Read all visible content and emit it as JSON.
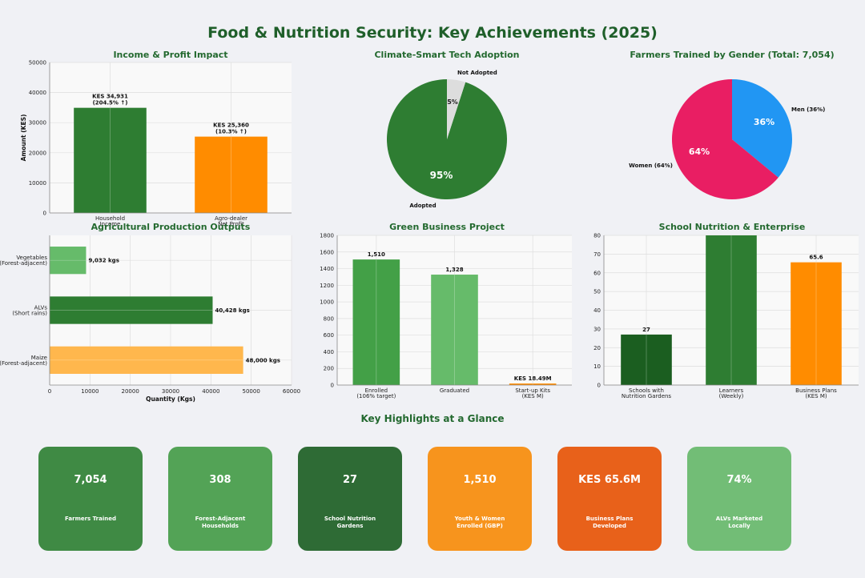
{
  "title": "Food & Nutrition Security: Key Achievements (2025)",
  "highlights_title": "Key Highlights at a Glance",
  "highlights": [
    {
      "value": "7,054",
      "label": "Farmers Trained",
      "color": "#3f8a44"
    },
    {
      "value": "308",
      "label": "Forest-Adjacent\nHouseholds",
      "color": "#53a356"
    },
    {
      "value": "27",
      "label": "School Nutrition\nGardens",
      "color": "#2e6b35"
    },
    {
      "value": "1,510",
      "label": "Youth & Women\nEnrolled (GBP)",
      "color": "#f7941d"
    },
    {
      "value": "KES 65.6M",
      "label": "Business Plans\nDeveloped",
      "color": "#e8611a"
    },
    {
      "value": "74%",
      "label": "ALVs Marketed\nLocally",
      "color": "#72bd76"
    }
  ],
  "chart_data": [
    {
      "type": "bar",
      "title": "Income & Profit Impact",
      "ylabel": "Amount (KES)",
      "categories": [
        "Household\nIncome",
        "Agro-dealer\nNet Profit"
      ],
      "values": [
        34931,
        25360
      ],
      "data_labels": [
        "KES 34,931\n(204.5% ↑)",
        "KES 25,360\n(10.3% ↑)"
      ],
      "colors": [
        "#2e7d32",
        "#ff8c00"
      ],
      "ylim": [
        0,
        50000
      ],
      "yticks": [
        0,
        10000,
        20000,
        30000,
        40000,
        50000
      ],
      "grid": true
    },
    {
      "type": "pie",
      "title": "Climate-Smart Tech Adoption",
      "labels": [
        "Adopted",
        "Not Adopted"
      ],
      "values": [
        95,
        5
      ],
      "pct_labels": [
        "95%",
        "5%"
      ],
      "colors": [
        "#2e7d32",
        "#dddddd"
      ]
    },
    {
      "type": "pie",
      "title": "Farmers Trained by Gender (Total: 7,054)",
      "labels": [
        "Women (64%)",
        "Men (36%)"
      ],
      "values": [
        64,
        36
      ],
      "pct_labels": [
        "64%",
        "36%"
      ],
      "colors": [
        "#e91e63",
        "#2196f3"
      ]
    },
    {
      "type": "bar",
      "orientation": "horizontal",
      "title": "Agricultural Production Outputs",
      "xlabel": "Quantity (Kgs)",
      "categories": [
        "Vegetables\n(Forest-adjacent)",
        "ALVs\n(Short rains)",
        "Maize\n(Forest-adjacent)"
      ],
      "values": [
        9032,
        40428,
        48000
      ],
      "data_labels": [
        "9,032 kgs",
        "40,428 kgs",
        "48,000 kgs"
      ],
      "colors": [
        "#66bb6a",
        "#2e7d32",
        "#ffb74d"
      ],
      "xlim": [
        0,
        60000
      ],
      "xticks": [
        0,
        10000,
        20000,
        30000,
        40000,
        50000,
        60000
      ],
      "grid": true
    },
    {
      "type": "bar",
      "title": "Green Business Project",
      "categories": [
        "Enrolled\n(106% target)",
        "Graduated",
        "Start-up Kits\n(KES M)"
      ],
      "values": [
        1510,
        1328,
        18.49
      ],
      "data_labels": [
        "1,510",
        "1,328",
        "KES 18.49M"
      ],
      "colors": [
        "#43a047",
        "#66bb6a",
        "#ff8c00"
      ],
      "ylim": [
        0,
        1800
      ],
      "yticks": [
        0,
        200,
        400,
        600,
        800,
        1000,
        1200,
        1400,
        1600,
        1800
      ],
      "grid": true
    },
    {
      "type": "bar",
      "title": "School Nutrition & Enterprise",
      "categories": [
        "Schools with\nNutrition Gardens",
        "Learners\n(Weekly)",
        "Business Plans\n(KES M)"
      ],
      "values": [
        27,
        80,
        65.6
      ],
      "data_labels": [
        "27",
        "",
        "65.6"
      ],
      "colors": [
        "#1b5e20",
        "#2e7d32",
        "#ff8c00"
      ],
      "ylim": [
        0,
        80
      ],
      "yticks": [
        0,
        10,
        20,
        30,
        40,
        50,
        60,
        70,
        80
      ],
      "grid": true
    }
  ]
}
